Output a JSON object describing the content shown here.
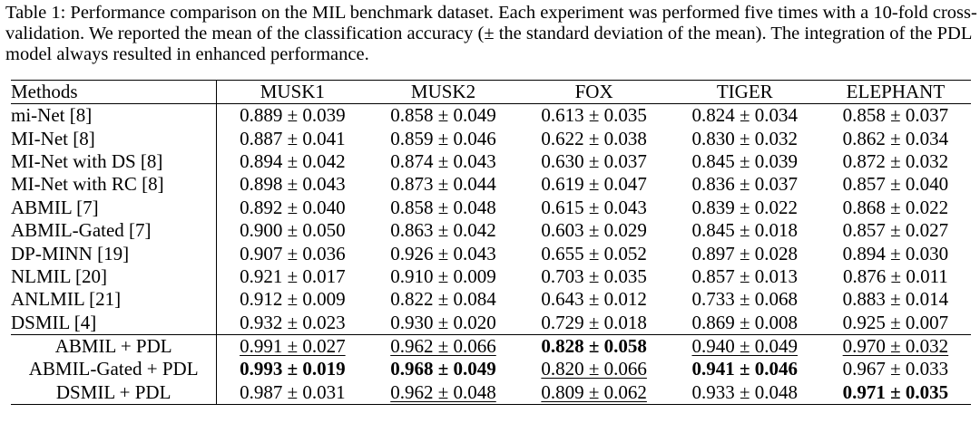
{
  "caption": "Table 1: Performance comparison on the MIL benchmark dataset. Each experiment was performed five times with a 10-fold cross-validation. We reported the mean of the classification accuracy (± the standard deviation of the mean). The integration of the PDL model always resulted in enhanced performance.",
  "table": {
    "headers": [
      "Methods",
      "MUSK1",
      "MUSK2",
      "FOX",
      "TIGER",
      "ELEPHANT"
    ],
    "baseline_rows": [
      {
        "method": "mi-Net [8]",
        "values": [
          "0.889 ± 0.039",
          "0.858 ± 0.049",
          "0.613 ± 0.035",
          "0.824 ± 0.034",
          "0.858 ± 0.037"
        ]
      },
      {
        "method": "MI-Net [8]",
        "values": [
          "0.887 ± 0.041",
          "0.859 ± 0.046",
          "0.622 ± 0.038",
          "0.830 ± 0.032",
          "0.862 ± 0.034"
        ]
      },
      {
        "method": "MI-Net with DS [8]",
        "values": [
          "0.894 ± 0.042",
          "0.874 ± 0.043",
          "0.630 ± 0.037",
          "0.845 ± 0.039",
          "0.872 ± 0.032"
        ]
      },
      {
        "method": "MI-Net with RC [8]",
        "values": [
          "0.898 ± 0.043",
          "0.873 ± 0.044",
          "0.619 ± 0.047",
          "0.836 ± 0.037",
          "0.857 ± 0.040"
        ]
      },
      {
        "method": "ABMIL [7]",
        "values": [
          "0.892 ± 0.040",
          "0.858 ± 0.048",
          "0.615 ± 0.043",
          "0.839 ± 0.022",
          "0.868 ± 0.022"
        ]
      },
      {
        "method": "ABMIL-Gated [7]",
        "values": [
          "0.900 ± 0.050",
          "0.863 ± 0.042",
          "0.603 ± 0.029",
          "0.845 ± 0.018",
          "0.857 ± 0.027"
        ]
      },
      {
        "method": "DP-MINN [19]",
        "values": [
          "0.907 ± 0.036",
          "0.926 ± 0.043",
          "0.655 ± 0.052",
          "0.897 ± 0.028",
          "0.894 ± 0.030"
        ]
      },
      {
        "method": "NLMIL [20]",
        "values": [
          "0.921 ± 0.017",
          "0.910 ± 0.009",
          "0.703 ± 0.035",
          "0.857 ± 0.013",
          "0.876 ± 0.011"
        ]
      },
      {
        "method": "ANLMIL [21]",
        "values": [
          "0.912 ± 0.009",
          "0.822 ± 0.084",
          "0.643 ± 0.012",
          "0.733 ± 0.068",
          "0.883 ± 0.014"
        ]
      },
      {
        "method": "DSMIL [4]",
        "values": [
          "0.932 ± 0.023",
          "0.930 ± 0.020",
          "0.729 ± 0.018",
          "0.869 ± 0.008",
          "0.925 ± 0.007"
        ]
      }
    ],
    "pdl_rows": [
      {
        "method": "ABMIL + PDL",
        "values": [
          "0.991 ± 0.027",
          "0.962 ± 0.066",
          "0.828 ± 0.058",
          "0.940 ± 0.049",
          "0.970 ± 0.032"
        ]
      },
      {
        "method": "ABMIL-Gated + PDL",
        "values": [
          "0.993 ± 0.019",
          "0.968 ± 0.049",
          "0.820 ± 0.066",
          "0.941 ± 0.046",
          "0.967 ± 0.033"
        ]
      },
      {
        "method": "DSMIL + PDL",
        "values": [
          "0.987 ± 0.031",
          "0.962 ± 0.048",
          "0.809 ± 0.062",
          "0.933 ± 0.048",
          "0.971 ± 0.035"
        ]
      }
    ]
  }
}
